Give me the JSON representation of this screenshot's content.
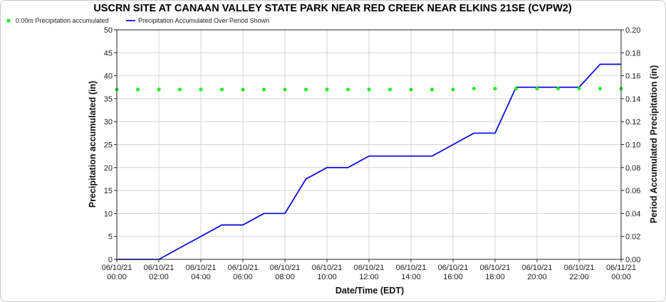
{
  "chart_data": {
    "type": "line",
    "title": "USCRN SITE AT CANAAN VALLEY STATE PARK NEAR RED CREEK NEAR ELKINS 21SE (CVPW2)",
    "xlabel": "Date/Time (EDT)",
    "ylabel_left": "Precipitation accumulated (in)",
    "ylabel_right": "Period Accumulated Precipitation (in)",
    "ylim_left": [
      0,
      50
    ],
    "ylim_right": [
      0,
      0.2
    ],
    "yticks_left": [
      "0",
      "5",
      "10",
      "15",
      "20",
      "25",
      "30",
      "35",
      "40",
      "45",
      "50"
    ],
    "yticks_right": [
      "0.00",
      "0.02",
      "0.04",
      "0.06",
      "0.08",
      "0.10",
      "0.12",
      "0.14",
      "0.16",
      "0.18",
      "0.20"
    ],
    "x_hours_range": [
      0,
      24
    ],
    "xticks": [
      {
        "date": "06/10/21",
        "time": "00:00"
      },
      {
        "date": "06/10/21",
        "time": "02:00"
      },
      {
        "date": "06/10/21",
        "time": "04:00"
      },
      {
        "date": "06/10/21",
        "time": "06:00"
      },
      {
        "date": "06/10/21",
        "time": "08:00"
      },
      {
        "date": "06/10/21",
        "time": "10:00"
      },
      {
        "date": "06/10/21",
        "time": "12:00"
      },
      {
        "date": "06/10/21",
        "time": "14:00"
      },
      {
        "date": "06/10/21",
        "time": "16:00"
      },
      {
        "date": "06/10/21",
        "time": "18:00"
      },
      {
        "date": "06/10/21",
        "time": "20:00"
      },
      {
        "date": "06/10/21",
        "time": "22:00"
      },
      {
        "date": "06/11/21",
        "time": "00:00"
      }
    ],
    "grid": true,
    "legend_position": "top-left",
    "series": [
      {
        "name": "0.00m Precipitation accumulated",
        "style": "scatter",
        "axis": "left",
        "color": "#22ee22",
        "x_hours": [
          0,
          1,
          2,
          3,
          4,
          5,
          6,
          7,
          8,
          9,
          10,
          11,
          12,
          13,
          14,
          15,
          16,
          17,
          18,
          19,
          20,
          21,
          22,
          23,
          24
        ],
        "values": [
          37,
          37,
          37,
          37,
          37,
          37,
          37,
          37,
          37,
          37,
          37,
          37,
          37,
          37,
          37,
          37,
          37,
          37.2,
          37.2,
          37.2,
          37.2,
          37.2,
          37.2,
          37.2,
          37.2
        ]
      },
      {
        "name": "Precipitation Accumulated Over Period Shown",
        "style": "line",
        "axis": "right",
        "color": "#1010dd",
        "x_hours": [
          0,
          1,
          2,
          3,
          4,
          5,
          6,
          7,
          8,
          9,
          10,
          11,
          12,
          13,
          14,
          15,
          16,
          17,
          18,
          19,
          20,
          21,
          22,
          23,
          24
        ],
        "values": [
          0.0,
          0.0,
          0.0,
          0.01,
          0.02,
          0.03,
          0.03,
          0.04,
          0.04,
          0.07,
          0.08,
          0.08,
          0.09,
          0.09,
          0.09,
          0.09,
          0.1,
          0.11,
          0.11,
          0.15,
          0.15,
          0.15,
          0.15,
          0.17,
          0.17
        ]
      }
    ]
  }
}
